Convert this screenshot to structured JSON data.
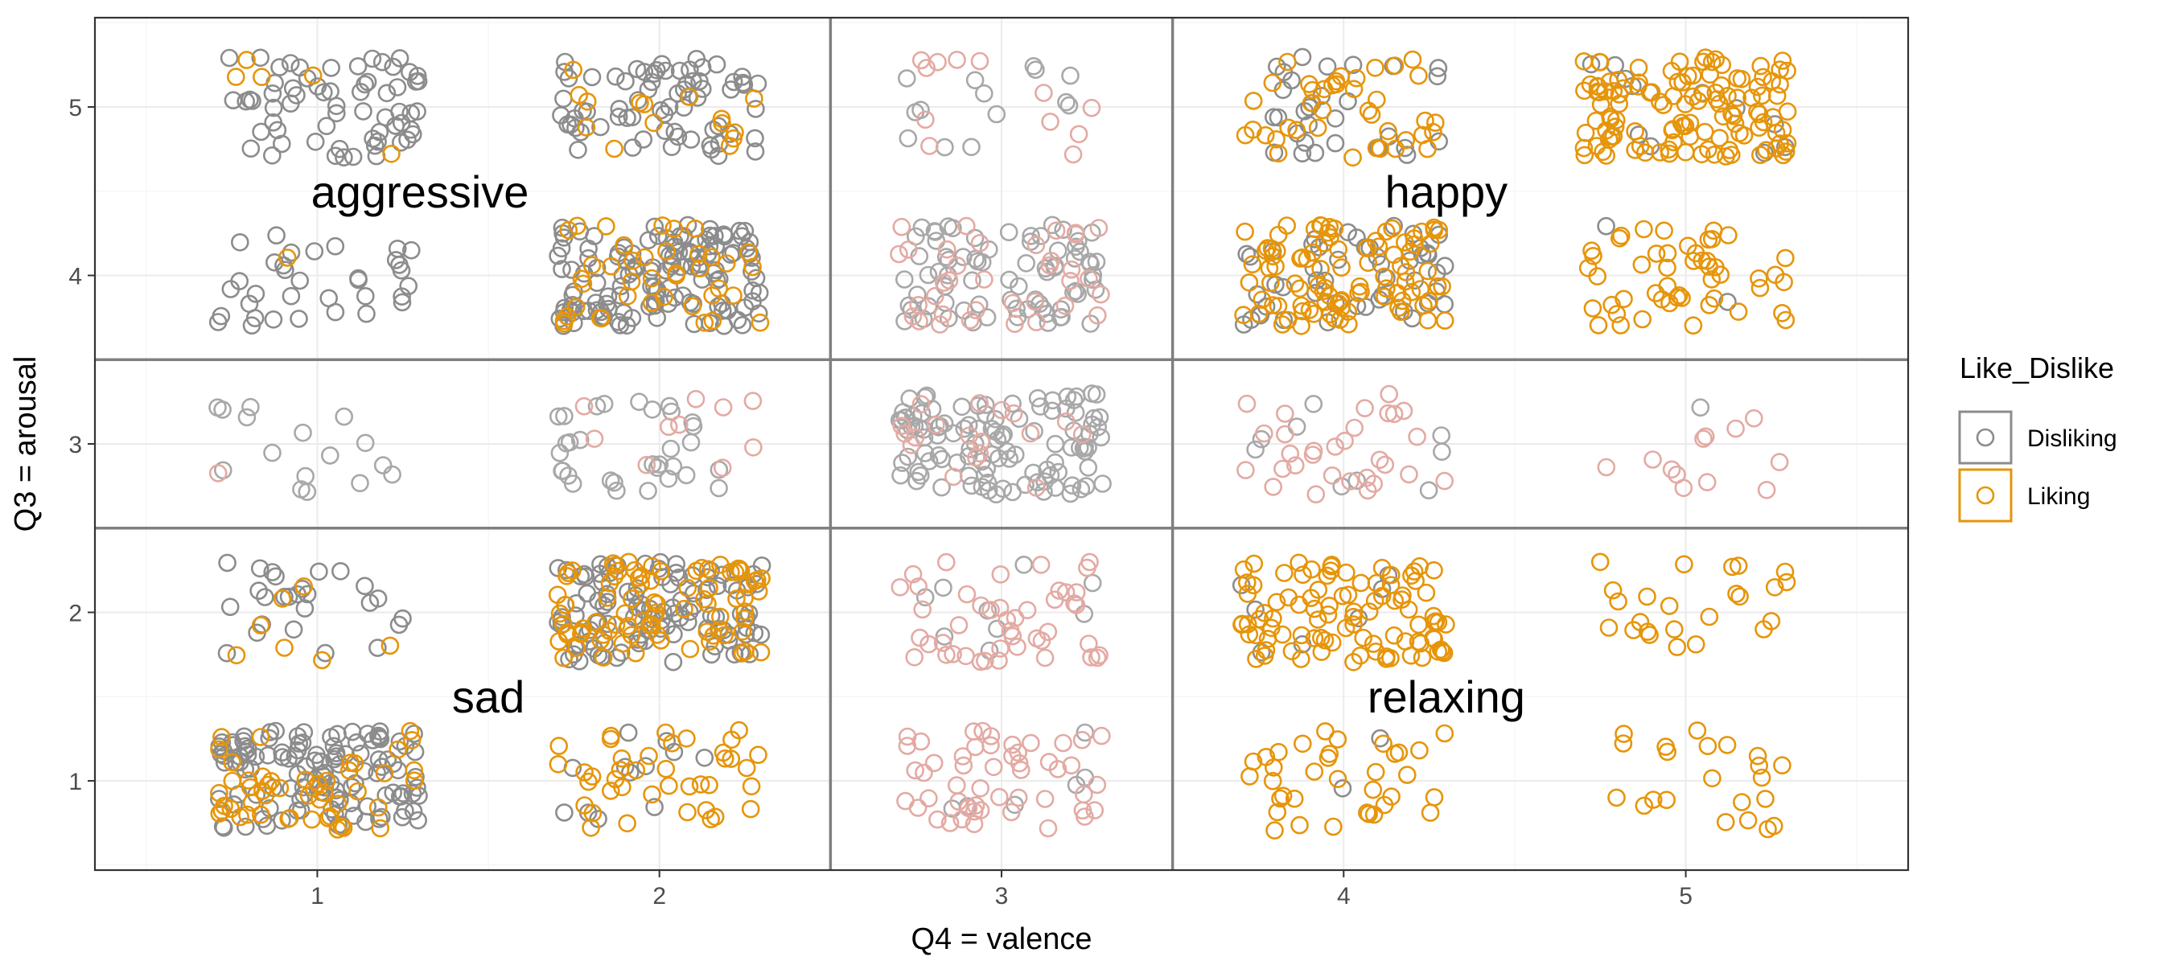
{
  "chart_data": {
    "type": "scatter",
    "subtype": "jitter",
    "xlabel": "Q4 = valence",
    "ylabel": "Q3 = arousal",
    "xlim": [
      0.35,
      5.65
    ],
    "ylim": [
      0.47,
      5.53
    ],
    "x_ticks": [
      1,
      2,
      3,
      4,
      5
    ],
    "y_ticks": [
      1,
      2,
      3,
      4,
      5
    ],
    "x_tick_labels": [
      "1",
      "2",
      "3",
      "4",
      "5"
    ],
    "y_tick_labels": [
      "1",
      "2",
      "3",
      "4",
      "5"
    ],
    "grid": true,
    "jitter": 0.3,
    "quadrant_boundaries": {
      "x": [
        2.5,
        3.5
      ],
      "y": [
        2.5,
        3.5
      ]
    },
    "region_labels": [
      {
        "text": "aggressive",
        "x": 1.3,
        "y": 4.5
      },
      {
        "text": "happy",
        "x": 4.3,
        "y": 4.5
      },
      {
        "text": "sad",
        "x": 1.5,
        "y": 1.5
      },
      {
        "text": "relaxing",
        "x": 4.3,
        "y": 1.5
      }
    ],
    "legend": {
      "title": "Like_Dislike",
      "position": "right",
      "entries": [
        {
          "label": "Disliking",
          "color": "#8c8c8c"
        },
        {
          "label": "Liking",
          "color": "#e6950a"
        }
      ]
    },
    "colors": {
      "disliking": "#8c8c8c",
      "liking": "#e6950a",
      "disliking_neutral": "#a8a8a8",
      "liking_neutral": "#e3aaa3",
      "panel_border": "#333333",
      "quadrant_line": "#7f7f7f",
      "grid_major": "#ebebeb",
      "grid_minor": "#f5f5f5"
    },
    "series": [
      {
        "name": "Disliking",
        "points_approx_count": [
          [
            1,
            1,
            120
          ],
          [
            2,
            1,
            12
          ],
          [
            3,
            1,
            6
          ],
          [
            4,
            1,
            2
          ],
          [
            5,
            1,
            0
          ],
          [
            1,
            2,
            26
          ],
          [
            2,
            2,
            110
          ],
          [
            3,
            2,
            9
          ],
          [
            4,
            2,
            7
          ],
          [
            5,
            2,
            0
          ],
          [
            1,
            3,
            16
          ],
          [
            2,
            3,
            32
          ],
          [
            3,
            3,
            110
          ],
          [
            4,
            3,
            9
          ],
          [
            5,
            3,
            1
          ],
          [
            1,
            4,
            34
          ],
          [
            2,
            4,
            130
          ],
          [
            3,
            4,
            75
          ],
          [
            4,
            4,
            48
          ],
          [
            5,
            4,
            2
          ],
          [
            1,
            5,
            64
          ],
          [
            2,
            5,
            70
          ],
          [
            3,
            5,
            14
          ],
          [
            4,
            5,
            30
          ],
          [
            5,
            5,
            12
          ]
        ]
      },
      {
        "name": "Liking",
        "points_approx_count": [
          [
            1,
            1,
            50
          ],
          [
            2,
            1,
            40
          ],
          [
            3,
            1,
            50
          ],
          [
            4,
            1,
            35
          ],
          [
            5,
            1,
            22
          ],
          [
            1,
            2,
            7
          ],
          [
            2,
            2,
            85
          ],
          [
            3,
            2,
            45
          ],
          [
            4,
            2,
            95
          ],
          [
            5,
            2,
            24
          ],
          [
            1,
            3,
            1
          ],
          [
            2,
            3,
            10
          ],
          [
            3,
            3,
            18
          ],
          [
            4,
            3,
            30
          ],
          [
            5,
            3,
            12
          ],
          [
            1,
            4,
            1
          ],
          [
            2,
            4,
            40
          ],
          [
            3,
            4,
            35
          ],
          [
            4,
            4,
            95
          ],
          [
            5,
            4,
            50
          ],
          [
            1,
            5,
            5
          ],
          [
            2,
            5,
            15
          ],
          [
            3,
            5,
            12
          ],
          [
            4,
            5,
            40
          ],
          [
            5,
            5,
            120
          ]
        ]
      }
    ]
  }
}
